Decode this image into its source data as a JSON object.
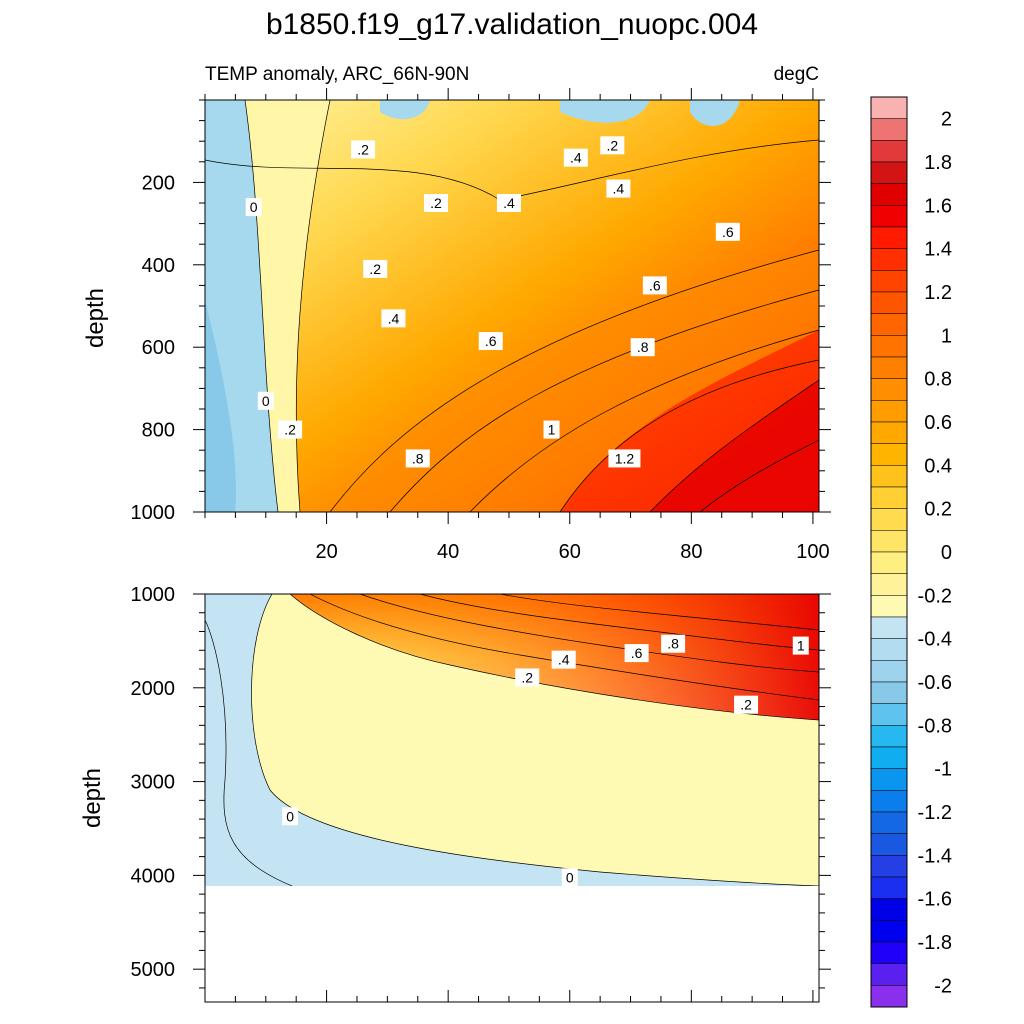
{
  "figure": {
    "title": "b1850.f19_g17.validation_nuopc.004",
    "subtitle_left": "TEMP anomaly, ARC_66N-90N",
    "subtitle_right": "degC"
  },
  "colorbar": {
    "labels": [
      "2",
      "1.8",
      "1.6",
      "1.4",
      "1.2",
      "1",
      "0.8",
      "0.6",
      "0.4",
      "0.2",
      "0",
      "-0.2",
      "-0.4",
      "-0.6",
      "-0.8",
      "-1",
      "-1.2",
      "-1.4",
      "-1.6",
      "-1.8",
      "-2"
    ],
    "colors": [
      "#f8b2b2",
      "#ee7474",
      "#e23a3a",
      "#d21414",
      "#e00000",
      "#f00000",
      "#ff1a00",
      "#ff2f00",
      "#ff4400",
      "#ff5500",
      "#ff6600",
      "#ff7300",
      "#ff8000",
      "#ff8e00",
      "#ff9c00",
      "#ffa800",
      "#ffb400",
      "#ffc21a",
      "#ffcf33",
      "#ffdc4d",
      "#ffe566",
      "#ffee80",
      "#fff399",
      "#fffab3",
      "#c4e4f4",
      "#b2dcf0",
      "#9dd3ec",
      "#88c9ea",
      "#5fc3f0",
      "#28b8f0",
      "#10aef0",
      "#0a96ee",
      "#0a7eec",
      "#1468e4",
      "#1a58e2",
      "#2440e4",
      "#1a2ff0",
      "#0000e8",
      "#0000f0",
      "#2000f8",
      "#5a20f0",
      "#8a30ec"
    ]
  },
  "chart_data": [
    {
      "type": "heatmap",
      "panel": "upper",
      "title": "",
      "xlabel": "",
      "ylabel": "depth",
      "x_ticks": [
        "20",
        "40",
        "60",
        "80",
        "100"
      ],
      "y_ticks": [
        "200",
        "400",
        "600",
        "800",
        "1000"
      ],
      "xlim": [
        0,
        101
      ],
      "ylim": [
        1000,
        0
      ],
      "contour_labels": [
        {
          "text": ".2",
          "x": 26,
          "y": 120
        },
        {
          "text": ".4",
          "x": 61,
          "y": 140
        },
        {
          "text": ".2",
          "x": 67,
          "y": 110
        },
        {
          "text": "0",
          "x": 8,
          "y": 260
        },
        {
          "text": ".2",
          "x": 38,
          "y": 250
        },
        {
          "text": ".4",
          "x": 50,
          "y": 250
        },
        {
          "text": ".4",
          "x": 68,
          "y": 215
        },
        {
          "text": ".6",
          "x": 86,
          "y": 320
        },
        {
          "text": ".2",
          "x": 28,
          "y": 410
        },
        {
          "text": ".6",
          "x": 74,
          "y": 450
        },
        {
          "text": ".4",
          "x": 31,
          "y": 530
        },
        {
          "text": ".6",
          "x": 47,
          "y": 585
        },
        {
          "text": ".8",
          "x": 72,
          "y": 600
        },
        {
          "text": "0",
          "x": 10,
          "y": 730
        },
        {
          "text": ".2",
          "x": 14,
          "y": 800
        },
        {
          "text": "1",
          "x": 57,
          "y": 800
        },
        {
          "text": ".8",
          "x": 35,
          "y": 870
        },
        {
          "text": "1.2",
          "x": 69,
          "y": 870
        }
      ]
    },
    {
      "type": "heatmap",
      "panel": "lower",
      "title": "",
      "xlabel": "",
      "ylabel": "depth",
      "y_ticks": [
        "1000",
        "2000",
        "3000",
        "4000",
        "5000"
      ],
      "xlim": [
        0,
        101
      ],
      "ylim": [
        5350,
        1000
      ],
      "contour_labels": [
        {
          "text": ".8",
          "x": 77,
          "y": 1530
        },
        {
          "text": "1",
          "x": 98,
          "y": 1550
        },
        {
          "text": ".6",
          "x": 71,
          "y": 1630
        },
        {
          "text": ".4",
          "x": 59,
          "y": 1700
        },
        {
          "text": ".2",
          "x": 53,
          "y": 1890
        },
        {
          "text": ".2",
          "x": 89,
          "y": 2180
        },
        {
          "text": "0",
          "x": 14,
          "y": 3370
        },
        {
          "text": "0",
          "x": 60,
          "y": 4020
        }
      ]
    }
  ]
}
